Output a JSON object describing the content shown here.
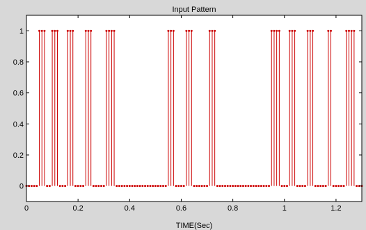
{
  "chart_data": {
    "type": "stem",
    "title": "Input Pattern",
    "xlabel": "TIME(Sec)",
    "ylabel": "",
    "xlim": [
      0,
      1.3
    ],
    "ylim": [
      -0.1,
      1.1
    ],
    "xticks": [
      0,
      0.2,
      0.4,
      0.6,
      0.8,
      1,
      1.2
    ],
    "xtick_labels": [
      "0",
      "0.2",
      "0.4",
      "0.6",
      "0.8",
      "1",
      "1.2"
    ],
    "yticks": [
      0,
      0.2,
      0.4,
      0.6,
      0.8,
      1
    ],
    "ytick_labels": [
      "0",
      "0.2",
      "0.4",
      "0.6",
      "0.8",
      "1"
    ],
    "grid": false,
    "sample_step": 0.01,
    "x_start": 0.0,
    "x_end": 1.3,
    "high_value": 1,
    "low_value": 0,
    "high_ranges": [
      [
        0.05,
        0.07
      ],
      [
        0.1,
        0.12
      ],
      [
        0.16,
        0.18
      ],
      [
        0.23,
        0.25
      ],
      [
        0.31,
        0.34
      ],
      [
        0.55,
        0.57
      ],
      [
        0.62,
        0.64
      ],
      [
        0.71,
        0.73
      ],
      [
        0.95,
        0.98
      ],
      [
        1.02,
        1.04
      ],
      [
        1.09,
        1.11
      ],
      [
        1.17,
        1.18
      ],
      [
        1.24,
        1.27
      ]
    ],
    "colors": {
      "stem": "#cc0000",
      "axes_bg": "#ffffff",
      "figure_bg": "#d8d8d8"
    }
  }
}
